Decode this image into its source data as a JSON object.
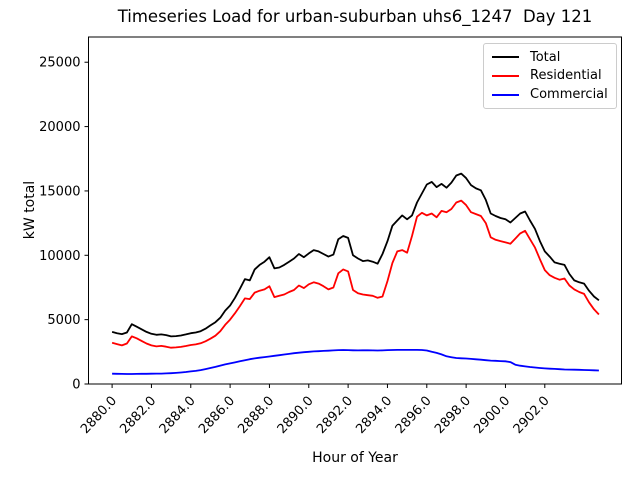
{
  "figure": {
    "background": "#ffffff"
  },
  "chart_data": {
    "type": "line",
    "title": "Timeseries Load for urban-suburban uhs6_1247  Day 121",
    "xlabel": "Hour of Year",
    "ylabel": "kW total",
    "grid": false,
    "legend_position": "upper right",
    "xlim": [
      2878.8,
      2905.9
    ],
    "ylim": [
      0,
      26960
    ],
    "xticks": {
      "values": [
        2880,
        2882,
        2884,
        2886,
        2888,
        2890,
        2892,
        2894,
        2896,
        2898,
        2900,
        2902
      ],
      "labels": [
        "2880.0",
        "2882.0",
        "2884.0",
        "2886.0",
        "2888.0",
        "2890.0",
        "2892.0",
        "2894.0",
        "2896.0",
        "2898.0",
        "2900.0",
        "2902.0"
      ]
    },
    "yticks": {
      "values": [
        0,
        5000,
        10000,
        15000,
        20000,
        25000
      ],
      "labels": [
        "0",
        "5000",
        "10000",
        "15000",
        "20000",
        "25000"
      ]
    },
    "x_start": 2880.0,
    "x_step": 0.25,
    "x": [
      2880.0,
      2880.25,
      2880.5,
      2880.75,
      2881.0,
      2881.25,
      2881.5,
      2881.75,
      2882.0,
      2882.25,
      2882.5,
      2882.75,
      2883.0,
      2883.25,
      2883.5,
      2883.75,
      2884.0,
      2884.25,
      2884.5,
      2884.75,
      2885.0,
      2885.25,
      2885.5,
      2885.75,
      2886.0,
      2886.25,
      2886.5,
      2886.75,
      2887.0,
      2887.25,
      2887.5,
      2887.75,
      2888.0,
      2888.25,
      2888.5,
      2888.75,
      2889.0,
      2889.25,
      2889.5,
      2889.75,
      2890.0,
      2890.25,
      2890.5,
      2890.75,
      2891.0,
      2891.25,
      2891.5,
      2891.75,
      2892.0,
      2892.25,
      2892.5,
      2892.75,
      2893.0,
      2893.25,
      2893.5,
      2893.75,
      2894.0,
      2894.25,
      2894.5,
      2894.75,
      2895.0,
      2895.25,
      2895.5,
      2895.75,
      2896.0,
      2896.25,
      2896.5,
      2896.75,
      2897.0,
      2897.25,
      2897.5,
      2897.75,
      2898.0,
      2898.25,
      2898.5,
      2898.75,
      2899.0,
      2899.25,
      2899.5,
      2899.75,
      2900.0,
      2900.25,
      2900.5,
      2900.75,
      2901.0,
      2901.25,
      2901.5,
      2901.75,
      2902.0,
      2902.25,
      2902.5,
      2902.75,
      2903.0,
      2903.25,
      2903.5,
      2903.75,
      2904.0,
      2904.25,
      2904.5,
      2904.75
    ],
    "series": [
      {
        "name": "Total",
        "color": "#000000",
        "values": [
          4050,
          3950,
          3880,
          4000,
          4650,
          4450,
          4250,
          4050,
          3900,
          3820,
          3850,
          3800,
          3700,
          3720,
          3770,
          3850,
          3950,
          4000,
          4100,
          4300,
          4550,
          4800,
          5150,
          5700,
          6100,
          6700,
          7400,
          8150,
          8050,
          8900,
          9250,
          9500,
          9850,
          8980,
          9050,
          9250,
          9500,
          9750,
          10100,
          9850,
          10150,
          10400,
          10300,
          10100,
          9900,
          10050,
          11250,
          11500,
          11350,
          10000,
          9750,
          9550,
          9600,
          9500,
          9350,
          10100,
          11100,
          12300,
          12700,
          13100,
          12800,
          13100,
          14100,
          14800,
          15500,
          15700,
          15300,
          15550,
          15250,
          15650,
          16200,
          16350,
          16000,
          15450,
          15200,
          15050,
          14300,
          13250,
          13050,
          12900,
          12800,
          12550,
          12900,
          13250,
          13400,
          12700,
          12050,
          11100,
          10300,
          9900,
          9450,
          9350,
          9250,
          8550,
          8050,
          7900,
          7800,
          7250,
          6800,
          6500
        ]
      },
      {
        "name": "Residential",
        "color": "#ff0000",
        "values": [
          3200,
          3100,
          3000,
          3150,
          3700,
          3550,
          3350,
          3150,
          3000,
          2920,
          2960,
          2900,
          2820,
          2840,
          2880,
          2950,
          3030,
          3080,
          3160,
          3320,
          3520,
          3750,
          4100,
          4600,
          5000,
          5500,
          6050,
          6650,
          6600,
          7100,
          7250,
          7350,
          7600,
          6750,
          6850,
          6950,
          7150,
          7300,
          7650,
          7450,
          7750,
          7900,
          7800,
          7600,
          7350,
          7500,
          8600,
          8900,
          8750,
          7300,
          7050,
          6950,
          6900,
          6850,
          6700,
          6800,
          8000,
          9400,
          10300,
          10400,
          10200,
          11500,
          13000,
          13300,
          13100,
          13250,
          12950,
          13450,
          13350,
          13600,
          14100,
          14250,
          13900,
          13350,
          13200,
          13050,
          12500,
          11400,
          11200,
          11100,
          11000,
          10900,
          11300,
          11700,
          11900,
          11250,
          10600,
          9700,
          8850,
          8450,
          8250,
          8100,
          8200,
          7650,
          7350,
          7150,
          7000,
          6350,
          5800,
          5400
        ]
      },
      {
        "name": "Commercial",
        "color": "#0000ff",
        "values": [
          800,
          790,
          785,
          780,
          780,
          785,
          790,
          795,
          800,
          805,
          810,
          820,
          840,
          860,
          890,
          930,
          980,
          1020,
          1080,
          1160,
          1240,
          1330,
          1430,
          1520,
          1600,
          1680,
          1760,
          1850,
          1930,
          1990,
          2040,
          2090,
          2140,
          2190,
          2240,
          2290,
          2340,
          2390,
          2430,
          2470,
          2500,
          2530,
          2550,
          2570,
          2590,
          2610,
          2630,
          2640,
          2630,
          2620,
          2610,
          2615,
          2620,
          2610,
          2600,
          2610,
          2630,
          2640,
          2650,
          2650,
          2650,
          2650,
          2650,
          2640,
          2600,
          2500,
          2420,
          2300,
          2150,
          2080,
          2020,
          2000,
          1980,
          1950,
          1920,
          1890,
          1850,
          1820,
          1800,
          1780,
          1760,
          1700,
          1500,
          1420,
          1370,
          1320,
          1280,
          1240,
          1210,
          1190,
          1170,
          1150,
          1130,
          1120,
          1110,
          1100,
          1090,
          1080,
          1065,
          1050
        ]
      }
    ]
  }
}
